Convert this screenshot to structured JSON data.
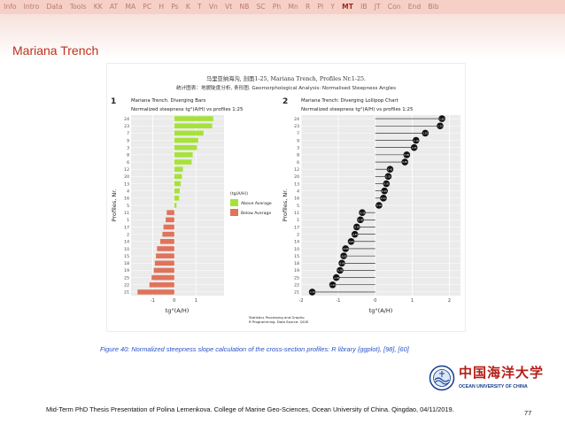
{
  "nav": {
    "items": [
      "Info",
      "Intro",
      "Data",
      "Tools",
      "KK",
      "AT",
      "MA",
      "PC",
      "H",
      "Ps",
      "K",
      "T",
      "Vn",
      "Vt",
      "NB",
      "SC",
      "Ph",
      "Mn",
      "R",
      "Pl",
      "Y",
      "MT",
      "IB",
      "JT",
      "Con",
      "End",
      "Bib"
    ],
    "active": "MT"
  },
  "slide": {
    "title": "Mariana Trench"
  },
  "figure": {
    "title_cn": "马里亚纳海沟, 剖面1-25, Mariana Trench, Profiles Nr.1-25.",
    "subtitle": "统计图表：地貌陡度分析, 条形图. Geomorphological Analysis: Normalised Steepness Angles",
    "source_line1": "Statistics Processing and Graphs:",
    "source_line2": "R Programming. Data Source: QGIS",
    "panel1": {
      "number": "1",
      "title": "Mariana Trench. Diverging Bars",
      "subtitle": "Normalized steepness tg°(A/H) vs profiles 1:25",
      "xlabel": "tg°(A/H)",
      "ylabel": "Profiles, Nr.",
      "legend_title": "(tg(A/H))",
      "legend_above": "Above Average",
      "legend_below": "Below Average"
    },
    "panel2": {
      "number": "2",
      "title": "Mariana Trench: Diverging Lollipop Chart",
      "subtitle": "Normalized steepness tg°(A/H) vs profiles 1:25",
      "xlabel": "tg°(A/H)",
      "ylabel": "Profiles, Nr."
    }
  },
  "chart_data": {
    "type": "bar",
    "categories": [
      "24",
      "23",
      "7",
      "9",
      "3",
      "8",
      "6",
      "12",
      "20",
      "13",
      "4",
      "16",
      "5",
      "11",
      "1",
      "17",
      "2",
      "14",
      "10",
      "15",
      "18",
      "19",
      "25",
      "22",
      "21"
    ],
    "values": [
      1.8,
      1.75,
      1.35,
      1.1,
      1.05,
      0.85,
      0.8,
      0.4,
      0.35,
      0.3,
      0.25,
      0.22,
      0.1,
      -0.35,
      -0.4,
      -0.5,
      -0.55,
      -0.65,
      -0.8,
      -0.85,
      -0.9,
      -0.95,
      -1.05,
      -1.15,
      -1.7
    ],
    "xlim": [
      -2,
      2.3
    ],
    "panel1_xticks": [
      -1,
      0,
      1
    ],
    "panel2_xticks": [
      -2,
      -1,
      0,
      1,
      2
    ],
    "colors": {
      "above": "#a6e23a",
      "below": "#e0735a",
      "lollipop": "#111111"
    }
  },
  "caption": {
    "prefix": "Figure 40:",
    "text": " Normalized steepness slope calculation of the cross-section profiles: R library {ggplot},",
    "ref1": " [98]",
    "sep": ",",
    "ref2": " [60]"
  },
  "footer": {
    "text": "Mid-Term PhD Thesis Presentation of Polina Lemenkova. College of Marine Geo-Sciences, Ocean University of China. Qingdao, 04/11/2019.",
    "page": "77"
  },
  "logo": {
    "cn": "中国海洋大学",
    "en": "OCEAN UNIVERSITY OF CHINA"
  }
}
